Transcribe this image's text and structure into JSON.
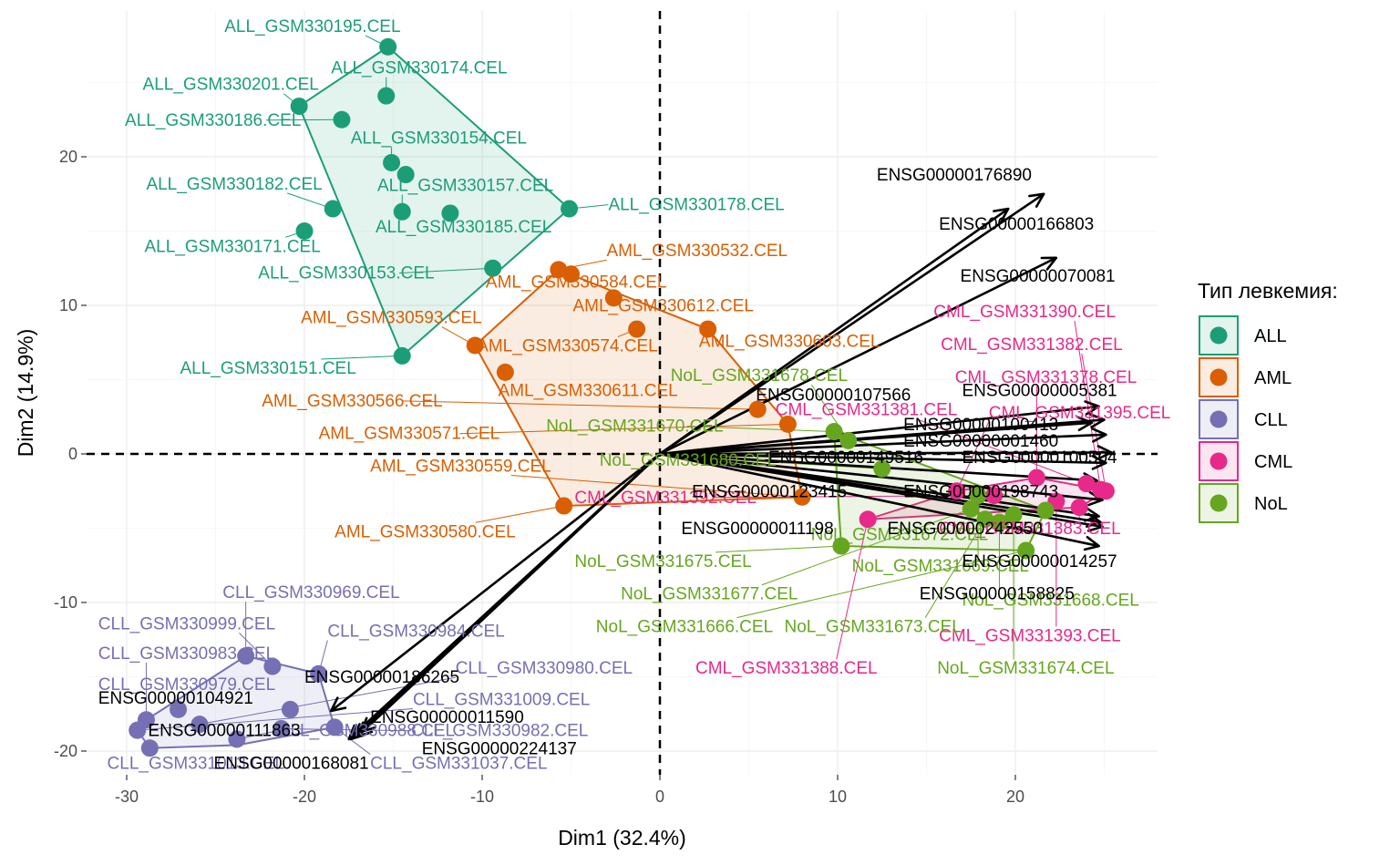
{
  "chart_data": {
    "type": "scatter",
    "title": "",
    "xlabel": "Dim1 (32.4%)",
    "ylabel": "Dim2 (14.9%)",
    "xlim": [
      -30,
      28
    ],
    "ylim": [
      -21,
      29
    ],
    "x_ticks": [
      -30,
      -20,
      -10,
      0,
      10,
      20
    ],
    "y_ticks": [
      -20,
      -10,
      0,
      10,
      20
    ],
    "grid": true,
    "legend": {
      "title": "Тип левкемия:",
      "placement": "right",
      "entries": [
        "ALL",
        "AML",
        "CLL",
        "CML",
        "NoL"
      ]
    },
    "series": [
      {
        "name": "ALL",
        "color": "#1b9e77",
        "points": [
          {
            "x": -15.3,
            "y": 27.4,
            "label": "ALL_GSM330195.CEL",
            "lx": -24.5,
            "ly": 28.4
          },
          {
            "x": -20.3,
            "y": 23.4,
            "label": "ALL_GSM330201.CEL",
            "lx": -29.1,
            "ly": 24.5
          },
          {
            "x": -15.4,
            "y": 24.1,
            "label": "ALL_GSM330174.CEL",
            "lx": -18.5,
            "ly": 25.6
          },
          {
            "x": -17.9,
            "y": 22.5,
            "label": "ALL_GSM330186.CEL",
            "lx": -30.1,
            "ly": 22.1
          },
          {
            "x": -15.1,
            "y": 19.6,
            "label": "ALL_GSM330154.CEL",
            "lx": -17.4,
            "ly": 20.9
          },
          {
            "x": -14.3,
            "y": 18.8,
            "label": "",
            "lx": 0,
            "ly": 0
          },
          {
            "x": -18.4,
            "y": 16.5,
            "label": "ALL_GSM330182.CEL",
            "lx": -28.9,
            "ly": 17.8
          },
          {
            "x": -14.5,
            "y": 16.3,
            "label": "ALL_GSM330157.CEL",
            "lx": -15.9,
            "ly": 17.7
          },
          {
            "x": -11.8,
            "y": 16.2,
            "label": "ALL_GSM330185.CEL",
            "lx": -16.0,
            "ly": 14.9
          },
          {
            "x": -5.1,
            "y": 16.5,
            "label": "ALL_GSM330178.CEL",
            "lx": -2.9,
            "ly": 16.4
          },
          {
            "x": -9.4,
            "y": 12.5,
            "label": "ALL_GSM330153.CEL",
            "lx": -22.6,
            "ly": 11.8
          },
          {
            "x": -14.5,
            "y": 6.6,
            "label": "ALL_GSM330151.CEL",
            "lx": -27.0,
            "ly": 5.4
          },
          {
            "x": -20.0,
            "y": 15.0,
            "label": "ALL_GSM330171.CEL",
            "lx": -29.0,
            "ly": 13.6
          }
        ],
        "hull": [
          [
            -15.3,
            27.4
          ],
          [
            -5.1,
            16.5
          ],
          [
            -14.5,
            6.6
          ],
          [
            -20.3,
            23.4
          ]
        ]
      },
      {
        "name": "AML",
        "color": "#d95f02",
        "points": [
          {
            "x": -5.7,
            "y": 12.4,
            "label": "AML_GSM330532.CEL",
            "lx": -3.0,
            "ly": 13.3
          },
          {
            "x": -5.0,
            "y": 12.1,
            "label": "AML_GSM330584.CEL",
            "lx": -9.8,
            "ly": 11.2
          },
          {
            "x": -2.6,
            "y": 10.5,
            "label": "AML_GSM330612.CEL",
            "lx": -4.9,
            "ly": 9.6
          },
          {
            "x": -1.3,
            "y": 8.4,
            "label": "AML_GSM330574.CEL",
            "lx": -10.3,
            "ly": 6.9
          },
          {
            "x": 2.7,
            "y": 8.4,
            "label": "AML_GSM330603.CEL",
            "lx": 2.2,
            "ly": 7.2
          },
          {
            "x": -10.4,
            "y": 7.3,
            "label": "AML_GSM330593.CEL",
            "lx": -20.2,
            "ly": 8.8
          },
          {
            "x": -8.7,
            "y": 5.5,
            "label": "AML_GSM330611.CEL",
            "lx": -9.1,
            "ly": 3.9
          },
          {
            "x": 5.5,
            "y": 3.0,
            "label": "AML_GSM330566.CEL",
            "lx": -22.4,
            "ly": 3.2
          },
          {
            "x": 7.2,
            "y": 2.0,
            "label": "AML_GSM330571.CEL",
            "lx": -19.2,
            "ly": 1.0
          },
          {
            "x": 8.0,
            "y": -2.9,
            "label": "AML_GSM330559.CEL",
            "lx": -16.3,
            "ly": -1.2
          },
          {
            "x": -5.4,
            "y": -3.5,
            "label": "AML_GSM330580.CEL",
            "lx": -18.3,
            "ly": -5.6
          }
        ],
        "hull": [
          [
            -5.7,
            12.4
          ],
          [
            2.7,
            8.4
          ],
          [
            7.2,
            2.0
          ],
          [
            8.0,
            -2.9
          ],
          [
            -5.4,
            -3.5
          ],
          [
            -10.4,
            7.3
          ]
        ]
      },
      {
        "name": "CLL",
        "color": "#7570b3",
        "points": [
          {
            "x": -23.3,
            "y": -13.6,
            "label": "CLL_GSM330969.CEL",
            "lx": -24.6,
            "ly": -9.7
          },
          {
            "x": -21.8,
            "y": -14.3,
            "label": "CLL_GSM330999.CEL",
            "lx": -31.6,
            "ly": -11.8
          },
          {
            "x": -19.2,
            "y": -14.8,
            "label": "CLL_GSM330984.CEL",
            "lx": -18.7,
            "ly": -12.3
          },
          {
            "x": -28.9,
            "y": -17.9,
            "label": "CLL_GSM330983.CEL",
            "lx": -31.6,
            "ly": -13.8
          },
          {
            "x": -27.1,
            "y": -17.2,
            "label": "CLL_GSM330979.CEL",
            "lx": -31.6,
            "ly": -15.9
          },
          {
            "x": -29.4,
            "y": -18.6,
            "label": "CLL_GSM331009.CEL",
            "lx": -13.9,
            "ly": -16.9
          },
          {
            "x": -25.9,
            "y": -18.2,
            "label": "CLL_GSM330980.CEL",
            "lx": -11.5,
            "ly": -14.8
          },
          {
            "x": -23.8,
            "y": -19.2,
            "label": "CLL_GSM330988.CEL",
            "lx": -21.5,
            "ly": -19.0
          },
          {
            "x": -21.3,
            "y": -18.5,
            "label": "CLL_GSM330982.CEL",
            "lx": -14.0,
            "ly": -19.0
          },
          {
            "x": -28.7,
            "y": -19.8,
            "label": "CLL_GSM331013.CEL",
            "lx": -31.1,
            "ly": -21.2
          },
          {
            "x": -20.8,
            "y": -17.2,
            "label": "",
            "lx": 0,
            "ly": 0
          },
          {
            "x": -18.3,
            "y": -18.4,
            "label": "CLL_GSM331037.CEL",
            "lx": -16.3,
            "ly": -21.2
          }
        ],
        "hull": [
          [
            -23.3,
            -13.6
          ],
          [
            -19.2,
            -14.8
          ],
          [
            -18.3,
            -18.4
          ],
          [
            -23.8,
            -19.6
          ],
          [
            -28.7,
            -19.8
          ],
          [
            -29.4,
            -18.6
          ],
          [
            -28.9,
            -17.9
          ]
        ]
      },
      {
        "name": "CML",
        "color": "#e7298a",
        "points": [
          {
            "x": 24.8,
            "y": -2.4,
            "label": "CML_GSM331390.CEL",
            "lx": 15.4,
            "ly": 9.2
          },
          {
            "x": 25.1,
            "y": -2.5,
            "label": "CML_GSM331382.CEL",
            "lx": 15.8,
            "ly": 7.0
          },
          {
            "x": 21.2,
            "y": -1.6,
            "label": "CML_GSM331378.CEL",
            "lx": 16.6,
            "ly": 4.8
          },
          {
            "x": 24.0,
            "y": -2.0,
            "label": "CML_GSM331381.CEL",
            "lx": 6.5,
            "ly": 2.6
          },
          {
            "x": 16.7,
            "y": -2.5,
            "label": "CML_GSM331395.CEL",
            "lx": 18.5,
            "ly": 2.4
          },
          {
            "x": 18.8,
            "y": -2.8,
            "label": "CML_GSM331392.CEL",
            "lx": -4.8,
            "ly": -3.3
          },
          {
            "x": 11.7,
            "y": -4.4,
            "label": "CML_GSM331388.CEL",
            "lx": 2.0,
            "ly": -14.8
          },
          {
            "x": 22.3,
            "y": -3.2,
            "label": "CML_GSM331393.CEL",
            "lx": 15.7,
            "ly": -12.6
          },
          {
            "x": 23.6,
            "y": -3.6,
            "label": "CML_GSM331383.CEL",
            "lx": 15.7,
            "ly": -5.4
          }
        ],
        "hull": [
          [
            21.2,
            -1.6
          ],
          [
            24.8,
            -2.4
          ],
          [
            25.1,
            -2.5
          ],
          [
            23.6,
            -3.6
          ],
          [
            11.7,
            -4.4
          ],
          [
            16.7,
            -2.5
          ]
        ]
      },
      {
        "name": "NoL",
        "color": "#66a61e",
        "points": [
          {
            "x": 9.8,
            "y": 1.5,
            "label": "NoL_GSM331670.CEL",
            "lx": -6.4,
            "ly": 1.5
          },
          {
            "x": 10.6,
            "y": 0.9,
            "label": "NoL_GSM331678.CEL",
            "lx": 0.6,
            "ly": 4.9
          },
          {
            "x": 12.5,
            "y": -1.0,
            "label": "NoL_GSM331680.CEL",
            "lx": -3.4,
            "ly": -0.8
          },
          {
            "x": 10.2,
            "y": -6.2,
            "label": "NoL_GSM331675.CEL",
            "lx": -4.8,
            "ly": -7.6
          },
          {
            "x": 17.5,
            "y": -3.7,
            "label": "NoL_GSM331677.CEL",
            "lx": -2.2,
            "ly": -9.8
          },
          {
            "x": 20.6,
            "y": -6.5,
            "label": "NoL_GSM331666.CEL",
            "lx": -3.6,
            "ly": -12.0
          },
          {
            "x": 18.3,
            "y": -4.4,
            "label": "NoL_GSM331673.CEL",
            "lx": 7.0,
            "ly": -12.0
          },
          {
            "x": 19.9,
            "y": -4.1,
            "label": "NoL_GSM331674.CEL",
            "lx": 15.6,
            "ly": -14.8
          },
          {
            "x": 17.9,
            "y": -2.8,
            "label": "NoL_GSM331669.CEL",
            "lx": 10.8,
            "ly": -7.9
          },
          {
            "x": 21.7,
            "y": -3.8,
            "label": "NoL_GSM331672.CEL",
            "lx": 8.5,
            "ly": -5.8
          },
          {
            "x": 19.1,
            "y": -4.6,
            "label": "NoL_GSM331668.CEL",
            "lx": 17.0,
            "ly": -10.2
          }
        ],
        "hull": [
          [
            9.8,
            1.5
          ],
          [
            21.7,
            -3.8
          ],
          [
            20.6,
            -6.5
          ],
          [
            10.2,
            -6.2
          ]
        ]
      }
    ],
    "variables": [
      {
        "name": "ENSG00000176890",
        "x": 21.6,
        "y": 17.5,
        "lx": 12.2,
        "ly": 18.4
      },
      {
        "name": "ENSG00000166803",
        "x": 19.6,
        "y": 16.5,
        "lx": 15.7,
        "ly": 15.1
      },
      {
        "name": "ENSG00000070081",
        "x": 22.3,
        "y": 13.2,
        "lx": 16.9,
        "ly": 11.6
      },
      {
        "name": "ENSG00000005381",
        "x": 24.7,
        "y": 3.2,
        "lx": 17.0,
        "ly": 3.9
      },
      {
        "name": "ENSG00000107566",
        "x": 24.3,
        "y": 2.1,
        "lx": 5.4,
        "ly": 3.6
      },
      {
        "name": "ENSG00000100413",
        "x": 25.0,
        "y": 2.3,
        "lx": 13.7,
        "ly": 1.6
      },
      {
        "name": "ENSG00000001460",
        "x": 25.1,
        "y": 1.3,
        "lx": 13.7,
        "ly": 0.5
      },
      {
        "name": "ENSG00000149516",
        "x": 25.4,
        "y": 0.1,
        "lx": 6.1,
        "ly": -0.6
      },
      {
        "name": "ENSG00000100504",
        "x": 25.1,
        "y": -0.6,
        "lx": 17.0,
        "ly": -0.6
      },
      {
        "name": "ENSG00000123415",
        "x": 24.6,
        "y": -1.8,
        "lx": 1.8,
        "ly": -2.9
      },
      {
        "name": "ENSG00000198743",
        "x": 24.9,
        "y": -3.1,
        "lx": 13.7,
        "ly": -2.9
      },
      {
        "name": "ENSG00000011198",
        "x": 24.8,
        "y": -4.6,
        "lx": 1.2,
        "ly": -5.4
      },
      {
        "name": "ENSG00000242550",
        "x": 24.9,
        "y": -4.9,
        "lx": 12.8,
        "ly": -5.4
      },
      {
        "name": "ENSG00000014257",
        "x": 24.7,
        "y": -6.2,
        "lx": 17.0,
        "ly": -7.6
      },
      {
        "name": "ENSG00000158825",
        "x": 24.7,
        "y": -4.2,
        "lx": 14.6,
        "ly": -9.8
      },
      {
        "name": "ENSG00000186265",
        "x": -18.5,
        "y": -17.3,
        "lx": -20.0,
        "ly": -15.4
      },
      {
        "name": "ENSG00000104921",
        "x": -16.8,
        "y": -18.7,
        "lx": -31.6,
        "ly": -16.8
      },
      {
        "name": "ENSG00000011590",
        "x": -17.0,
        "y": -19.0,
        "lx": -16.3,
        "ly": -18.1
      },
      {
        "name": "ENSG00000111863",
        "x": -17.2,
        "y": -19.1,
        "lx": -28.8,
        "ly": -19.0
      },
      {
        "name": "ENSG00000224137",
        "x": -17.5,
        "y": -19.2,
        "lx": -13.4,
        "ly": -20.2
      },
      {
        "name": "ENSG00000168081",
        "x": -17.4,
        "y": -19.2,
        "lx": -25.1,
        "ly": -21.2
      }
    ]
  }
}
